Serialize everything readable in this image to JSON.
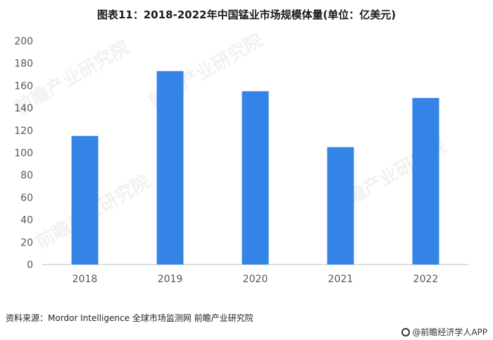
{
  "title": "图表11：2018-2022年中国锰业市场规模体量(单位：亿美元)",
  "source": "资料来源：Mordor Intelligence 全球市场监测网 前瞻产业研究院",
  "brand": "@前瞻经济学人APP",
  "watermark": "前瞻产业研究院",
  "colors": {
    "bar": "#3484e8",
    "axis": "#bfbfbf"
  },
  "chart_data": {
    "type": "bar",
    "categories": [
      "2018",
      "2019",
      "2020",
      "2021",
      "2022"
    ],
    "values": [
      115,
      173,
      155,
      105,
      149
    ],
    "ylim": [
      0,
      200
    ],
    "yticks": [
      0,
      20,
      40,
      60,
      80,
      100,
      120,
      140,
      160,
      180,
      200
    ],
    "grid": false,
    "legend": "none"
  }
}
